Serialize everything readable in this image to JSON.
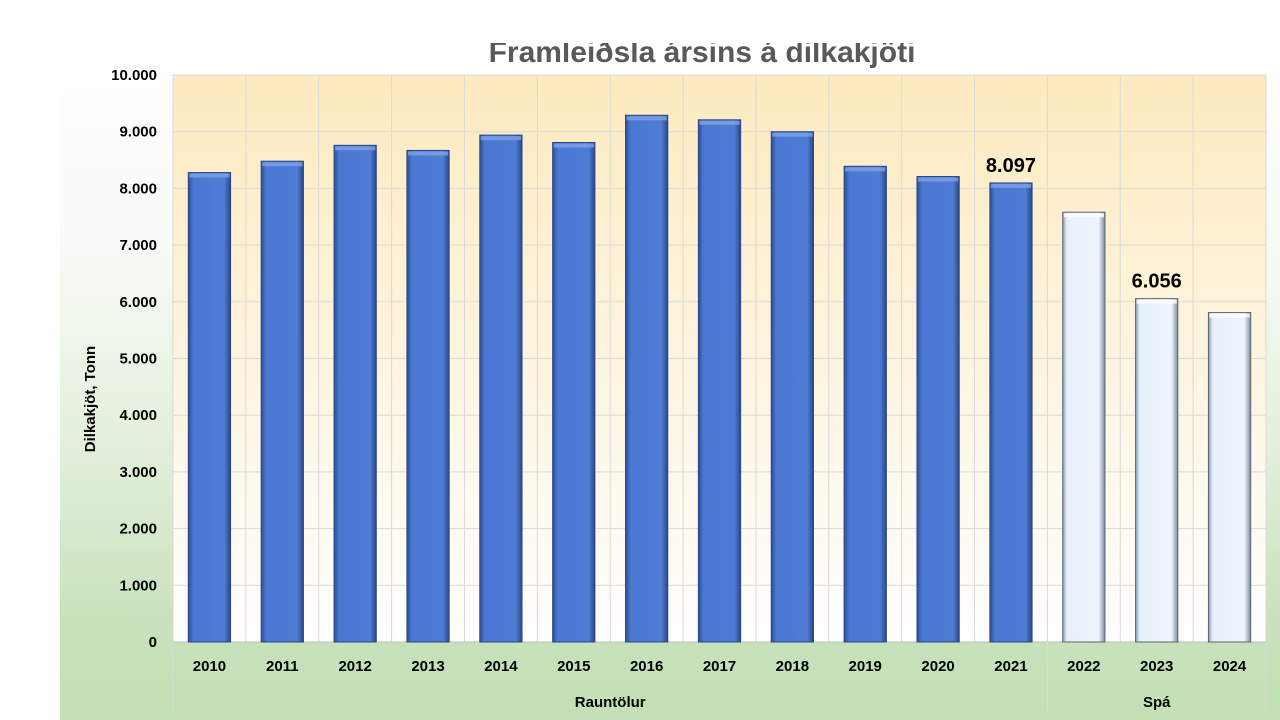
{
  "colors": {
    "actual_bar": "#4a78d2",
    "forecast_bar": "#e8f0fc",
    "plot_bg_top": "#fdeabf",
    "plot_bg_bottom": "#ffffff",
    "grid": "#d9d9d9"
  },
  "chart_data": {
    "type": "bar",
    "title": "Framleiðsla ársins á dilkakjöti",
    "ylabel": "Dilkakjöt, Tonn",
    "xlabel": "",
    "ylim": [
      0,
      10000
    ],
    "yticks": [
      "0",
      "1.000",
      "2.000",
      "3.000",
      "4.000",
      "5.000",
      "6.000",
      "7.000",
      "8.000",
      "9.000",
      "10.000"
    ],
    "categories": [
      "2010",
      "2011",
      "2012",
      "2013",
      "2014",
      "2015",
      "2016",
      "2017",
      "2018",
      "2019",
      "2020",
      "2021",
      "2022",
      "2023",
      "2024"
    ],
    "values": [
      8280,
      8480,
      8760,
      8670,
      8940,
      8810,
      9290,
      9210,
      9000,
      8390,
      8210,
      8097,
      7580,
      6056,
      5810
    ],
    "kinds": [
      "actual",
      "actual",
      "actual",
      "actual",
      "actual",
      "actual",
      "actual",
      "actual",
      "actual",
      "actual",
      "actual",
      "actual",
      "forecast",
      "forecast",
      "forecast"
    ],
    "data_labels": [
      {
        "category": "2021",
        "text": "8.097"
      },
      {
        "category": "2023",
        "text": "6.056"
      }
    ],
    "groups": [
      {
        "label": "Rauntölur",
        "from": "2010",
        "to": "2021"
      },
      {
        "label": "Spá",
        "from": "2022",
        "to": "2024"
      }
    ],
    "grid": true,
    "legend": "none"
  }
}
